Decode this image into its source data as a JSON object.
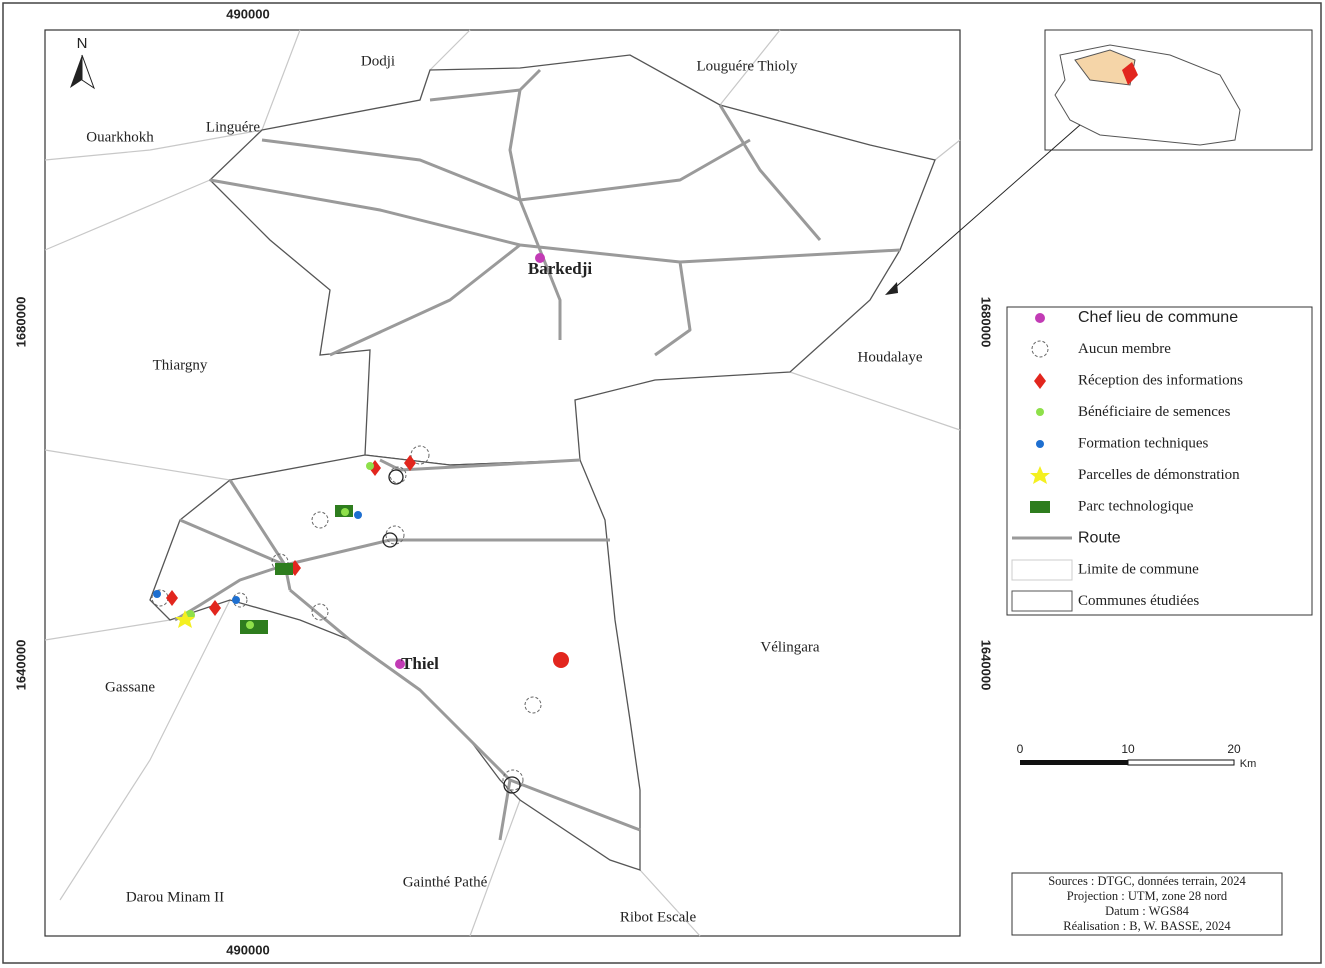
{
  "map": {
    "north_label": "N",
    "coordinates": {
      "top": [
        "490000"
      ],
      "bottom": [
        "490000"
      ],
      "left": [
        "1680000",
        "1640000"
      ],
      "right": [
        "1680000",
        "1640000"
      ]
    },
    "places": [
      "Dodji",
      "Louguére Thioly",
      "Ouarkhokh",
      "Linguére",
      "Barkedji",
      "Thiargny",
      "Houdalaye",
      "Thiel",
      "Vélingara",
      "Gassane",
      "Darou Minam II",
      "Gainthé Pathé",
      "Ribot Escale"
    ],
    "legend": [
      "Chef lieu de commune",
      "Aucun membre",
      "Réception des informations",
      "Bénéficiaire de semences",
      "Formation techniques",
      "Parcelles de démonstration",
      "Parc technologique",
      "Route",
      "Limite de commune",
      "Communes étudiées"
    ],
    "scale": {
      "labels": [
        "0",
        "10",
        "20"
      ],
      "unit": "Km"
    },
    "credits": [
      "Sources : DTGC, données terrain, 2024",
      "Projection : UTM, zone 28 nord",
      "Datum : WGS84",
      "Réalisation : B, W. BASSE, 2024"
    ]
  }
}
